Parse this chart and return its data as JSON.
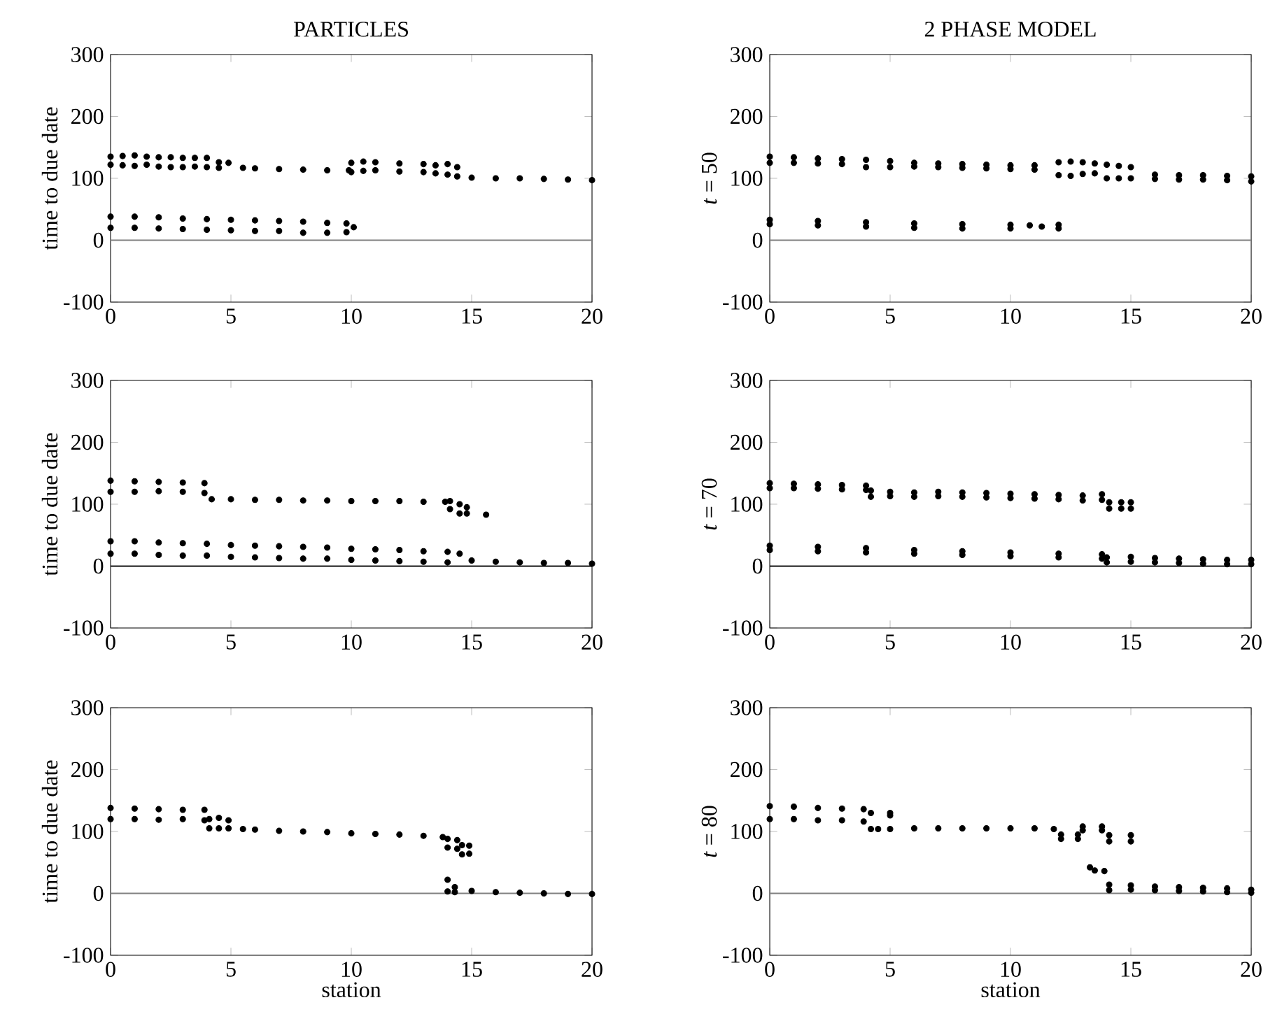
{
  "chart_data": [
    {
      "type": "scatter",
      "title": "PARTICLES",
      "ylabel": "time to due date",
      "color": "#000000",
      "marker": "circle",
      "xlim": [
        0,
        20
      ],
      "xticks": [
        0,
        5,
        10,
        15,
        20
      ],
      "ylim": [
        -100,
        300
      ],
      "yticks": [
        -100,
        0,
        100,
        200,
        300
      ],
      "ref_lines": [
        {
          "axis": "y",
          "value": 0,
          "color": "#808080"
        }
      ],
      "x": [
        0,
        0,
        0.5,
        0.5,
        1,
        1,
        1.5,
        1.5,
        2,
        2,
        2.5,
        2.5,
        3,
        3,
        3.5,
        3.5,
        4,
        4,
        4.5,
        4.5,
        4.9,
        5.5,
        6,
        7,
        8,
        9,
        9.9,
        10,
        10,
        10.5,
        10.5,
        11,
        11,
        12,
        12,
        13,
        13,
        13.5,
        13.5,
        14,
        14,
        14.4,
        14.4,
        15,
        16,
        17,
        18,
        19,
        20,
        0,
        0,
        1,
        1,
        2,
        2,
        3,
        3,
        4,
        4,
        5,
        5,
        6,
        6,
        7,
        7,
        8,
        8,
        9,
        9,
        9.8,
        9.8,
        10.1
      ],
      "values": [
        135,
        122,
        136,
        121,
        137,
        120,
        135,
        122,
        134,
        119,
        134,
        118,
        133,
        118,
        133,
        119,
        133,
        118,
        126,
        117,
        125,
        117,
        116,
        115,
        114,
        113,
        113,
        125,
        110,
        127,
        112,
        126,
        113,
        124,
        111,
        123,
        110,
        121,
        108,
        123,
        106,
        118,
        103,
        101,
        100,
        100,
        99,
        98,
        97,
        38,
        20,
        38,
        20,
        37,
        19,
        35,
        18,
        34,
        17,
        33,
        16,
        32,
        15,
        31,
        15,
        30,
        12,
        28,
        12,
        27,
        13,
        21
      ]
    },
    {
      "type": "scatter",
      "title": "2 PHASE MODEL",
      "ylabel": "*t* = 50",
      "color": "#000000",
      "marker": "circle",
      "xlim": [
        0,
        20
      ],
      "xticks": [
        0,
        5,
        10,
        15,
        20
      ],
      "ylim": [
        -100,
        300
      ],
      "yticks": [
        -100,
        0,
        100,
        200,
        300
      ],
      "ref_lines": [
        {
          "axis": "y",
          "value": 0,
          "color": "#808080"
        }
      ],
      "x": [
        0,
        0,
        1,
        1,
        2,
        2,
        3,
        3,
        4,
        4,
        5,
        5,
        6,
        6,
        7,
        7,
        8,
        8,
        9,
        9,
        10,
        10,
        11,
        11,
        12,
        12,
        12.5,
        12.5,
        13,
        13,
        13.5,
        13.5,
        14,
        14,
        14.5,
        14.5,
        15,
        15,
        16,
        16,
        17,
        17,
        18,
        18,
        19,
        19,
        20,
        20,
        0,
        0,
        2,
        2,
        4,
        4,
        6,
        6,
        8,
        8,
        10,
        10,
        10.8,
        11.3,
        12,
        12
      ],
      "values": [
        135,
        125,
        134,
        125,
        132,
        124,
        131,
        123,
        130,
        118,
        128,
        118,
        125,
        119,
        124,
        118,
        123,
        117,
        122,
        116,
        121,
        115,
        121,
        114,
        126,
        105,
        127,
        104,
        126,
        107,
        124,
        108,
        122,
        100,
        120,
        100,
        118,
        100,
        106,
        99,
        105,
        98,
        105,
        98,
        104,
        97,
        103,
        95,
        33,
        26,
        31,
        24,
        29,
        22,
        27,
        20,
        26,
        19,
        25,
        19,
        24,
        22,
        25,
        19
      ]
    },
    {
      "type": "scatter",
      "ylabel": "time to due date",
      "color": "#000000",
      "marker": "circle",
      "xlim": [
        0,
        20
      ],
      "xticks": [
        0,
        5,
        10,
        15,
        20
      ],
      "ylim": [
        -100,
        300
      ],
      "yticks": [
        -100,
        0,
        100,
        200,
        300
      ],
      "ref_lines": [
        {
          "axis": "y",
          "value": 0,
          "color": "#000000"
        }
      ],
      "x": [
        0,
        0,
        1,
        1,
        2,
        2,
        3,
        3,
        3.9,
        3.9,
        4.2,
        5,
        6,
        7,
        8,
        9,
        10,
        11,
        12,
        13,
        13.9,
        14.1,
        14.1,
        14.5,
        14.5,
        14.8,
        14.8,
        15.6,
        0,
        0,
        1,
        1,
        2,
        2,
        3,
        3,
        4,
        4,
        5,
        5,
        6,
        6,
        7,
        7,
        8,
        8,
        9,
        9,
        10,
        10,
        11,
        11,
        12,
        12,
        13,
        13,
        14,
        14,
        14.5,
        15,
        16,
        17,
        18,
        19,
        20
      ],
      "values": [
        138,
        120,
        137,
        120,
        136,
        121,
        135,
        120,
        134,
        118,
        108,
        108,
        107,
        107,
        106,
        106,
        105,
        105,
        105,
        104,
        104,
        105,
        92,
        100,
        85,
        95,
        85,
        83,
        40,
        20,
        40,
        20,
        38,
        18,
        37,
        17,
        36,
        17,
        34,
        15,
        33,
        14,
        32,
        13,
        31,
        12,
        30,
        12,
        28,
        10,
        27,
        9,
        26,
        8,
        24,
        7,
        23,
        6,
        20,
        9,
        7,
        6,
        5,
        5,
        4
      ]
    },
    {
      "type": "scatter",
      "ylabel": "*t* = 70",
      "color": "#000000",
      "marker": "circle",
      "xlim": [
        0,
        20
      ],
      "xticks": [
        0,
        5,
        10,
        15,
        20
      ],
      "ylim": [
        -100,
        300
      ],
      "yticks": [
        -100,
        0,
        100,
        200,
        300
      ],
      "ref_lines": [
        {
          "axis": "y",
          "value": 0,
          "color": "#000000"
        }
      ],
      "x": [
        0,
        0,
        1,
        1,
        2,
        2,
        3,
        3,
        4,
        4,
        4.2,
        4.2,
        5,
        5,
        6,
        6,
        7,
        7,
        8,
        8,
        9,
        9,
        10,
        10,
        11,
        11,
        12,
        12,
        13,
        13,
        13.8,
        13.8,
        14.1,
        14.1,
        14.6,
        14.6,
        15,
        15,
        0,
        0,
        2,
        2,
        4,
        4,
        6,
        6,
        8,
        8,
        10,
        10,
        12,
        12,
        13.8,
        13.8,
        14,
        14,
        15,
        15,
        16,
        16,
        17,
        17,
        18,
        18,
        19,
        19,
        20,
        20
      ],
      "values": [
        134,
        126,
        133,
        126,
        132,
        125,
        131,
        124,
        130,
        123,
        122,
        112,
        120,
        113,
        119,
        112,
        120,
        113,
        119,
        112,
        118,
        111,
        117,
        110,
        116,
        109,
        115,
        108,
        114,
        106,
        116,
        107,
        103,
        93,
        103,
        93,
        103,
        93,
        33,
        26,
        31,
        24,
        29,
        22,
        26,
        20,
        24,
        18,
        22,
        16,
        20,
        14,
        19,
        12,
        14,
        6,
        15,
        7,
        13,
        6,
        12,
        5,
        11,
        4,
        10,
        3,
        10,
        3
      ]
    },
    {
      "type": "scatter",
      "xlabel": "station",
      "ylabel": "time to due date",
      "color": "#000000",
      "marker": "circle",
      "xlim": [
        0,
        20
      ],
      "xticks": [
        0,
        5,
        10,
        15,
        20
      ],
      "ylim": [
        -100,
        300
      ],
      "yticks": [
        -100,
        0,
        100,
        200,
        300
      ],
      "ref_lines": [
        {
          "axis": "y",
          "value": 0,
          "color": "#808080"
        }
      ],
      "x": [
        0,
        0,
        1,
        1,
        2,
        2,
        3,
        3,
        3.9,
        3.9,
        4.1,
        4.1,
        4.5,
        4.5,
        4.9,
        4.9,
        5.5,
        6,
        7,
        8,
        9,
        10,
        11,
        12,
        13,
        13.8,
        14,
        14,
        14.4,
        14.4,
        14.6,
        14.6,
        14.9,
        14.9,
        14,
        14,
        14.3,
        14.3,
        15,
        16,
        17,
        18,
        19,
        20
      ],
      "values": [
        138,
        120,
        137,
        120,
        136,
        119,
        135,
        120,
        135,
        118,
        120,
        105,
        122,
        105,
        118,
        105,
        104,
        103,
        101,
        100,
        99,
        97,
        96,
        95,
        93,
        91,
        88,
        74,
        86,
        72,
        78,
        63,
        77,
        64,
        22,
        3,
        10,
        2,
        4,
        2,
        1,
        0,
        -1,
        -1
      ]
    },
    {
      "type": "scatter",
      "xlabel": "station",
      "ylabel": "*t* = 80",
      "color": "#000000",
      "marker": "circle",
      "xlim": [
        0,
        20
      ],
      "xticks": [
        0,
        5,
        10,
        15,
        20
      ],
      "ylim": [
        -100,
        300
      ],
      "yticks": [
        -100,
        0,
        100,
        200,
        300
      ],
      "ref_lines": [
        {
          "axis": "y",
          "value": 0,
          "color": "#808080"
        }
      ],
      "x": [
        0,
        0,
        1,
        1,
        2,
        2,
        3,
        3,
        3.9,
        3.9,
        4.2,
        4.2,
        5,
        5,
        4.5,
        5,
        6,
        7,
        8,
        9,
        10,
        11,
        11.8,
        12.1,
        12.1,
        12.8,
        12.8,
        13,
        13,
        13.8,
        13.8,
        13.3,
        13.5,
        13.9,
        14.1,
        14.1,
        15,
        15,
        14.1,
        14.1,
        15,
        15,
        16,
        16,
        17,
        17,
        18,
        18,
        19,
        19,
        20,
        20
      ],
      "values": [
        141,
        120,
        140,
        120,
        138,
        118,
        137,
        118,
        136,
        116,
        130,
        104,
        130,
        126,
        104,
        104,
        105,
        105,
        105,
        105,
        105,
        105,
        104,
        95,
        88,
        95,
        88,
        108,
        102,
        108,
        102,
        42,
        37,
        36,
        94,
        84,
        94,
        84,
        14,
        5,
        13,
        6,
        11,
        5,
        10,
        4,
        9,
        3,
        8,
        2,
        6,
        1
      ]
    }
  ]
}
